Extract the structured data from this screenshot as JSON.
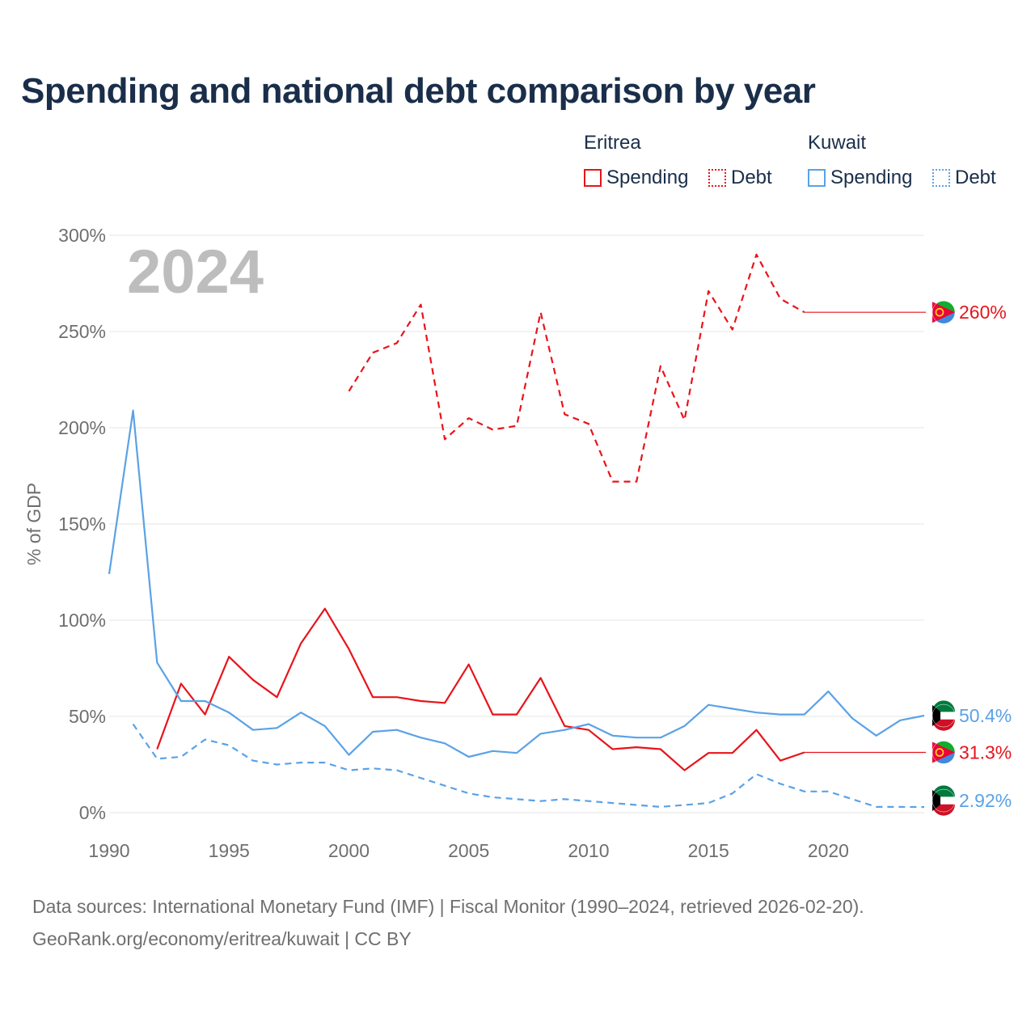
{
  "title": "Spending and national debt comparison by year",
  "legend": {
    "eritrea_label": "Eritrea",
    "kuwait_label": "Kuwait",
    "spending_label": "Spending",
    "debt_label": "Debt"
  },
  "colors": {
    "eritrea": "#e8141b",
    "kuwait": "#5aa2e6",
    "grid": "#e6e6e6",
    "axis_text": "#6f6f6f",
    "year_watermark": "#bdbdbd"
  },
  "footer": {
    "line1": "Data sources: International Monetary Fund (IMF) | Fiscal Monitor (1990–2024, retrieved 2026-02-20).",
    "line2": "GeoRank.org/economy/eritrea/kuwait | CC BY"
  },
  "chart_data": {
    "type": "line",
    "title": "Spending and national debt comparison by year",
    "ylabel": "% of GDP",
    "xlabel": "",
    "xlim": [
      1990,
      2024
    ],
    "ylim": [
      0,
      300
    ],
    "yticks": [
      0,
      50,
      100,
      150,
      200,
      250,
      300
    ],
    "ytick_labels": [
      "0%",
      "50%",
      "100%",
      "150%",
      "200%",
      "250%",
      "300%"
    ],
    "xticks": [
      1990,
      1995,
      2000,
      2005,
      2010,
      2015,
      2020
    ],
    "xtick_labels": [
      "1990",
      "1995",
      "2000",
      "2005",
      "2010",
      "2015",
      "2020"
    ],
    "year_label": "2024",
    "series": [
      {
        "name": "Eritrea Debt",
        "country": "Eritrea",
        "style": "dashed",
        "color": "#e8141b",
        "x": [
          2000,
          2001,
          2002,
          2003,
          2004,
          2005,
          2006,
          2007,
          2008,
          2009,
          2010,
          2011,
          2012,
          2013,
          2014,
          2015,
          2016,
          2017,
          2018,
          2019
        ],
        "values": [
          219,
          239,
          244,
          264,
          194,
          205,
          199,
          201,
          260,
          207,
          202,
          172,
          172,
          232,
          204,
          271,
          251,
          290,
          267,
          260
        ],
        "end_label": "260%"
      },
      {
        "name": "Eritrea Spending",
        "country": "Eritrea",
        "style": "solid",
        "color": "#e8141b",
        "x": [
          1992,
          1993,
          1994,
          1995,
          1996,
          1997,
          1998,
          1999,
          2000,
          2001,
          2002,
          2003,
          2004,
          2005,
          2006,
          2007,
          2008,
          2009,
          2010,
          2011,
          2012,
          2013,
          2014,
          2015,
          2016,
          2017,
          2018,
          2019
        ],
        "values": [
          33,
          67,
          51,
          81,
          69,
          60,
          88,
          106,
          85,
          60,
          60,
          58,
          57,
          77,
          51,
          51,
          70,
          45,
          43,
          33,
          34,
          33,
          22,
          31,
          31,
          43,
          27,
          31.3
        ],
        "end_label": "31.3%"
      },
      {
        "name": "Kuwait Spending",
        "country": "Kuwait",
        "style": "solid",
        "color": "#5aa2e6",
        "x": [
          1990,
          1991,
          1992,
          1993,
          1994,
          1995,
          1996,
          1997,
          1998,
          1999,
          2000,
          2001,
          2002,
          2003,
          2004,
          2005,
          2006,
          2007,
          2008,
          2009,
          2010,
          2011,
          2012,
          2013,
          2014,
          2015,
          2016,
          2017,
          2018,
          2019,
          2020,
          2021,
          2022,
          2023,
          2024
        ],
        "values": [
          124,
          209,
          78,
          58,
          58,
          52,
          43,
          44,
          52,
          45,
          30,
          42,
          43,
          39,
          36,
          29,
          32,
          31,
          41,
          43,
          46,
          40,
          39,
          39,
          45,
          56,
          54,
          52,
          51,
          51,
          63,
          49,
          40,
          48,
          50.4
        ],
        "end_label": "50.4%"
      },
      {
        "name": "Kuwait Debt",
        "country": "Kuwait",
        "style": "dashed",
        "color": "#5aa2e6",
        "x": [
          1991,
          1992,
          1993,
          1994,
          1995,
          1996,
          1997,
          1998,
          1999,
          2000,
          2001,
          2002,
          2003,
          2004,
          2005,
          2006,
          2007,
          2008,
          2009,
          2010,
          2011,
          2012,
          2013,
          2014,
          2015,
          2016,
          2017,
          2018,
          2019,
          2020,
          2021,
          2022,
          2023,
          2024
        ],
        "values": [
          46,
          28,
          29,
          38,
          35,
          27,
          25,
          26,
          26,
          22,
          23,
          22,
          18,
          14,
          10,
          8,
          7,
          6,
          7,
          6,
          5,
          4,
          3,
          4,
          5,
          10,
          20,
          15,
          11,
          11,
          7,
          3,
          3,
          2.92
        ],
        "end_label": "2.92%"
      }
    ]
  }
}
